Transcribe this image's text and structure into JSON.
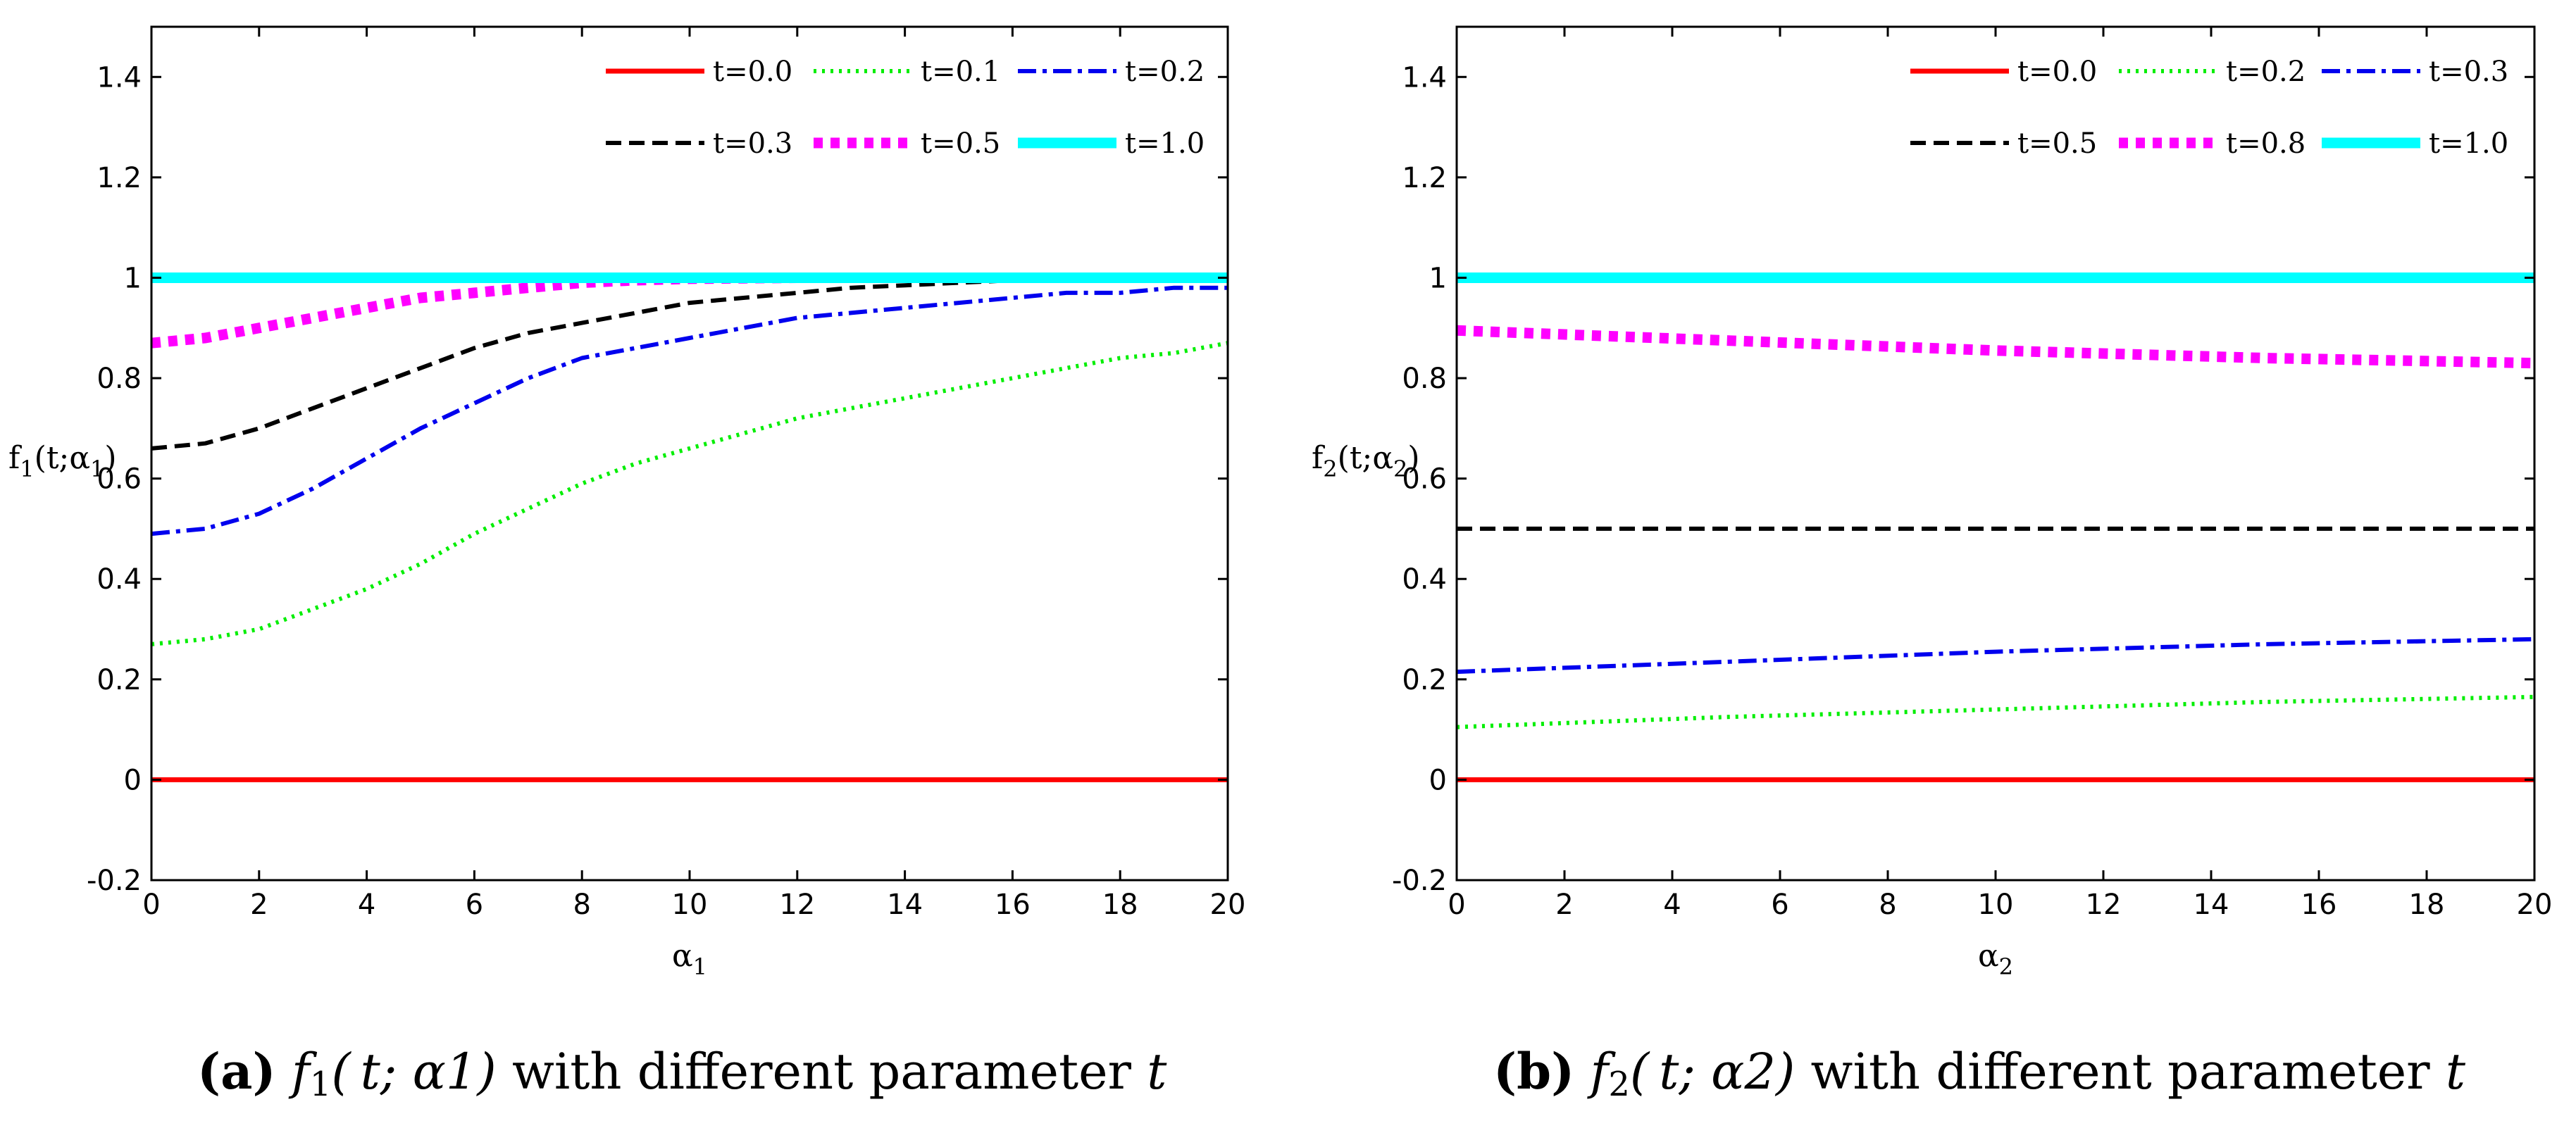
{
  "chart_data": [
    {
      "type": "line",
      "id": "a",
      "xlabel": "α1",
      "ylabel": "f1(t;α1)",
      "xlim": [
        0,
        20
      ],
      "ylim": [
        -0.2,
        1.5
      ],
      "xticks": [
        0,
        2,
        4,
        6,
        8,
        10,
        12,
        14,
        16,
        18,
        20
      ],
      "yticks": [
        -0.2,
        0,
        0.2,
        0.4,
        0.6,
        0.8,
        1,
        1.2,
        1.4
      ],
      "xtick_labels": [
        "0",
        "2",
        "4",
        "6",
        "8",
        "10",
        "12",
        "14",
        "16",
        "18",
        "20"
      ],
      "ytick_labels": [
        "-0.2",
        "0",
        "0.2",
        "0.4",
        "0.6",
        "0.8",
        "1",
        "1.2",
        "1.4"
      ],
      "caption": {
        "prefix": "(a)",
        "func": "f",
        "sub": "1",
        "args": "(t; α1)",
        "text": " with different parameter ",
        "param": "t"
      },
      "series": [
        {
          "name": "t=0.0",
          "color": "#ff0000",
          "style": "solid",
          "x": [
            0,
            20
          ],
          "y": [
            0,
            0
          ]
        },
        {
          "name": "t=0.1",
          "color": "#00ee00",
          "style": "dotted",
          "x": [
            0,
            1,
            2,
            3,
            4,
            5,
            6,
            7,
            8,
            9,
            10,
            11,
            12,
            13,
            14,
            15,
            16,
            17,
            18,
            19,
            20
          ],
          "y": [
            0.27,
            0.28,
            0.3,
            0.34,
            0.38,
            0.43,
            0.49,
            0.54,
            0.59,
            0.63,
            0.66,
            0.69,
            0.72,
            0.74,
            0.76,
            0.78,
            0.8,
            0.82,
            0.84,
            0.85,
            0.87
          ]
        },
        {
          "name": "t=0.2",
          "color": "#0000ee",
          "style": "dashdot",
          "x": [
            0,
            1,
            2,
            3,
            4,
            5,
            6,
            7,
            8,
            9,
            10,
            11,
            12,
            13,
            14,
            15,
            16,
            17,
            18,
            19,
            20
          ],
          "y": [
            0.49,
            0.5,
            0.53,
            0.58,
            0.64,
            0.7,
            0.75,
            0.8,
            0.84,
            0.86,
            0.88,
            0.9,
            0.92,
            0.93,
            0.94,
            0.95,
            0.96,
            0.97,
            0.97,
            0.98,
            0.98
          ]
        },
        {
          "name": "t=0.3",
          "color": "#000000",
          "style": "dashed",
          "x": [
            0,
            1,
            2,
            3,
            4,
            5,
            6,
            7,
            8,
            9,
            10,
            11,
            12,
            13,
            14,
            15,
            16
          ],
          "y": [
            0.66,
            0.67,
            0.7,
            0.74,
            0.78,
            0.82,
            0.86,
            0.89,
            0.91,
            0.93,
            0.95,
            0.96,
            0.97,
            0.98,
            0.985,
            0.99,
            0.995
          ]
        },
        {
          "name": "t=0.5",
          "color": "#ff00ff",
          "style": "thickdot",
          "x": [
            0,
            1,
            2,
            3,
            4,
            5,
            6,
            7,
            8,
            9,
            10,
            11,
            12
          ],
          "y": [
            0.87,
            0.88,
            0.9,
            0.92,
            0.94,
            0.96,
            0.97,
            0.98,
            0.99,
            0.995,
            0.998,
            0.999,
            1.0
          ]
        },
        {
          "name": "t=1.0",
          "color": "#00ffff",
          "style": "thick",
          "x": [
            0,
            20
          ],
          "y": [
            1,
            1
          ]
        }
      ]
    },
    {
      "type": "line",
      "id": "b",
      "xlabel": "α2",
      "ylabel": "f2(t;α2)",
      "xlim": [
        0,
        20
      ],
      "ylim": [
        -0.2,
        1.5
      ],
      "xticks": [
        0,
        2,
        4,
        6,
        8,
        10,
        12,
        14,
        16,
        18,
        20
      ],
      "yticks": [
        -0.2,
        0,
        0.2,
        0.4,
        0.6,
        0.8,
        1,
        1.2,
        1.4
      ],
      "xtick_labels": [
        "0",
        "2",
        "4",
        "6",
        "8",
        "10",
        "12",
        "14",
        "16",
        "18",
        "20"
      ],
      "ytick_labels": [
        "-0.2",
        "0",
        "0.2",
        "0.4",
        "0.6",
        "0.8",
        "1",
        "1.2",
        "1.4"
      ],
      "caption": {
        "prefix": "(b)",
        "func": "f",
        "sub": "2",
        "args": "(t; α2)",
        "text": " with different parameter ",
        "param": "t"
      },
      "series": [
        {
          "name": "t=0.0",
          "color": "#ff0000",
          "style": "solid",
          "x": [
            0,
            20
          ],
          "y": [
            0,
            0
          ]
        },
        {
          "name": "t=0.2",
          "color": "#00ee00",
          "style": "dotted",
          "x": [
            0,
            5,
            10,
            15,
            20
          ],
          "y": [
            0.105,
            0.125,
            0.14,
            0.155,
            0.165
          ]
        },
        {
          "name": "t=0.3",
          "color": "#0000ee",
          "style": "dashdot",
          "x": [
            0,
            5,
            10,
            15,
            20
          ],
          "y": [
            0.215,
            0.235,
            0.255,
            0.27,
            0.28
          ]
        },
        {
          "name": "t=0.5",
          "color": "#000000",
          "style": "dashed",
          "x": [
            0,
            20
          ],
          "y": [
            0.5,
            0.5
          ]
        },
        {
          "name": "t=0.8",
          "color": "#ff00ff",
          "style": "thickdot",
          "x": [
            0,
            5,
            10,
            15,
            20
          ],
          "y": [
            0.895,
            0.875,
            0.855,
            0.84,
            0.83
          ]
        },
        {
          "name": "t=1.0",
          "color": "#00ffff",
          "style": "thick",
          "x": [
            0,
            20
          ],
          "y": [
            1,
            1
          ]
        }
      ]
    }
  ]
}
